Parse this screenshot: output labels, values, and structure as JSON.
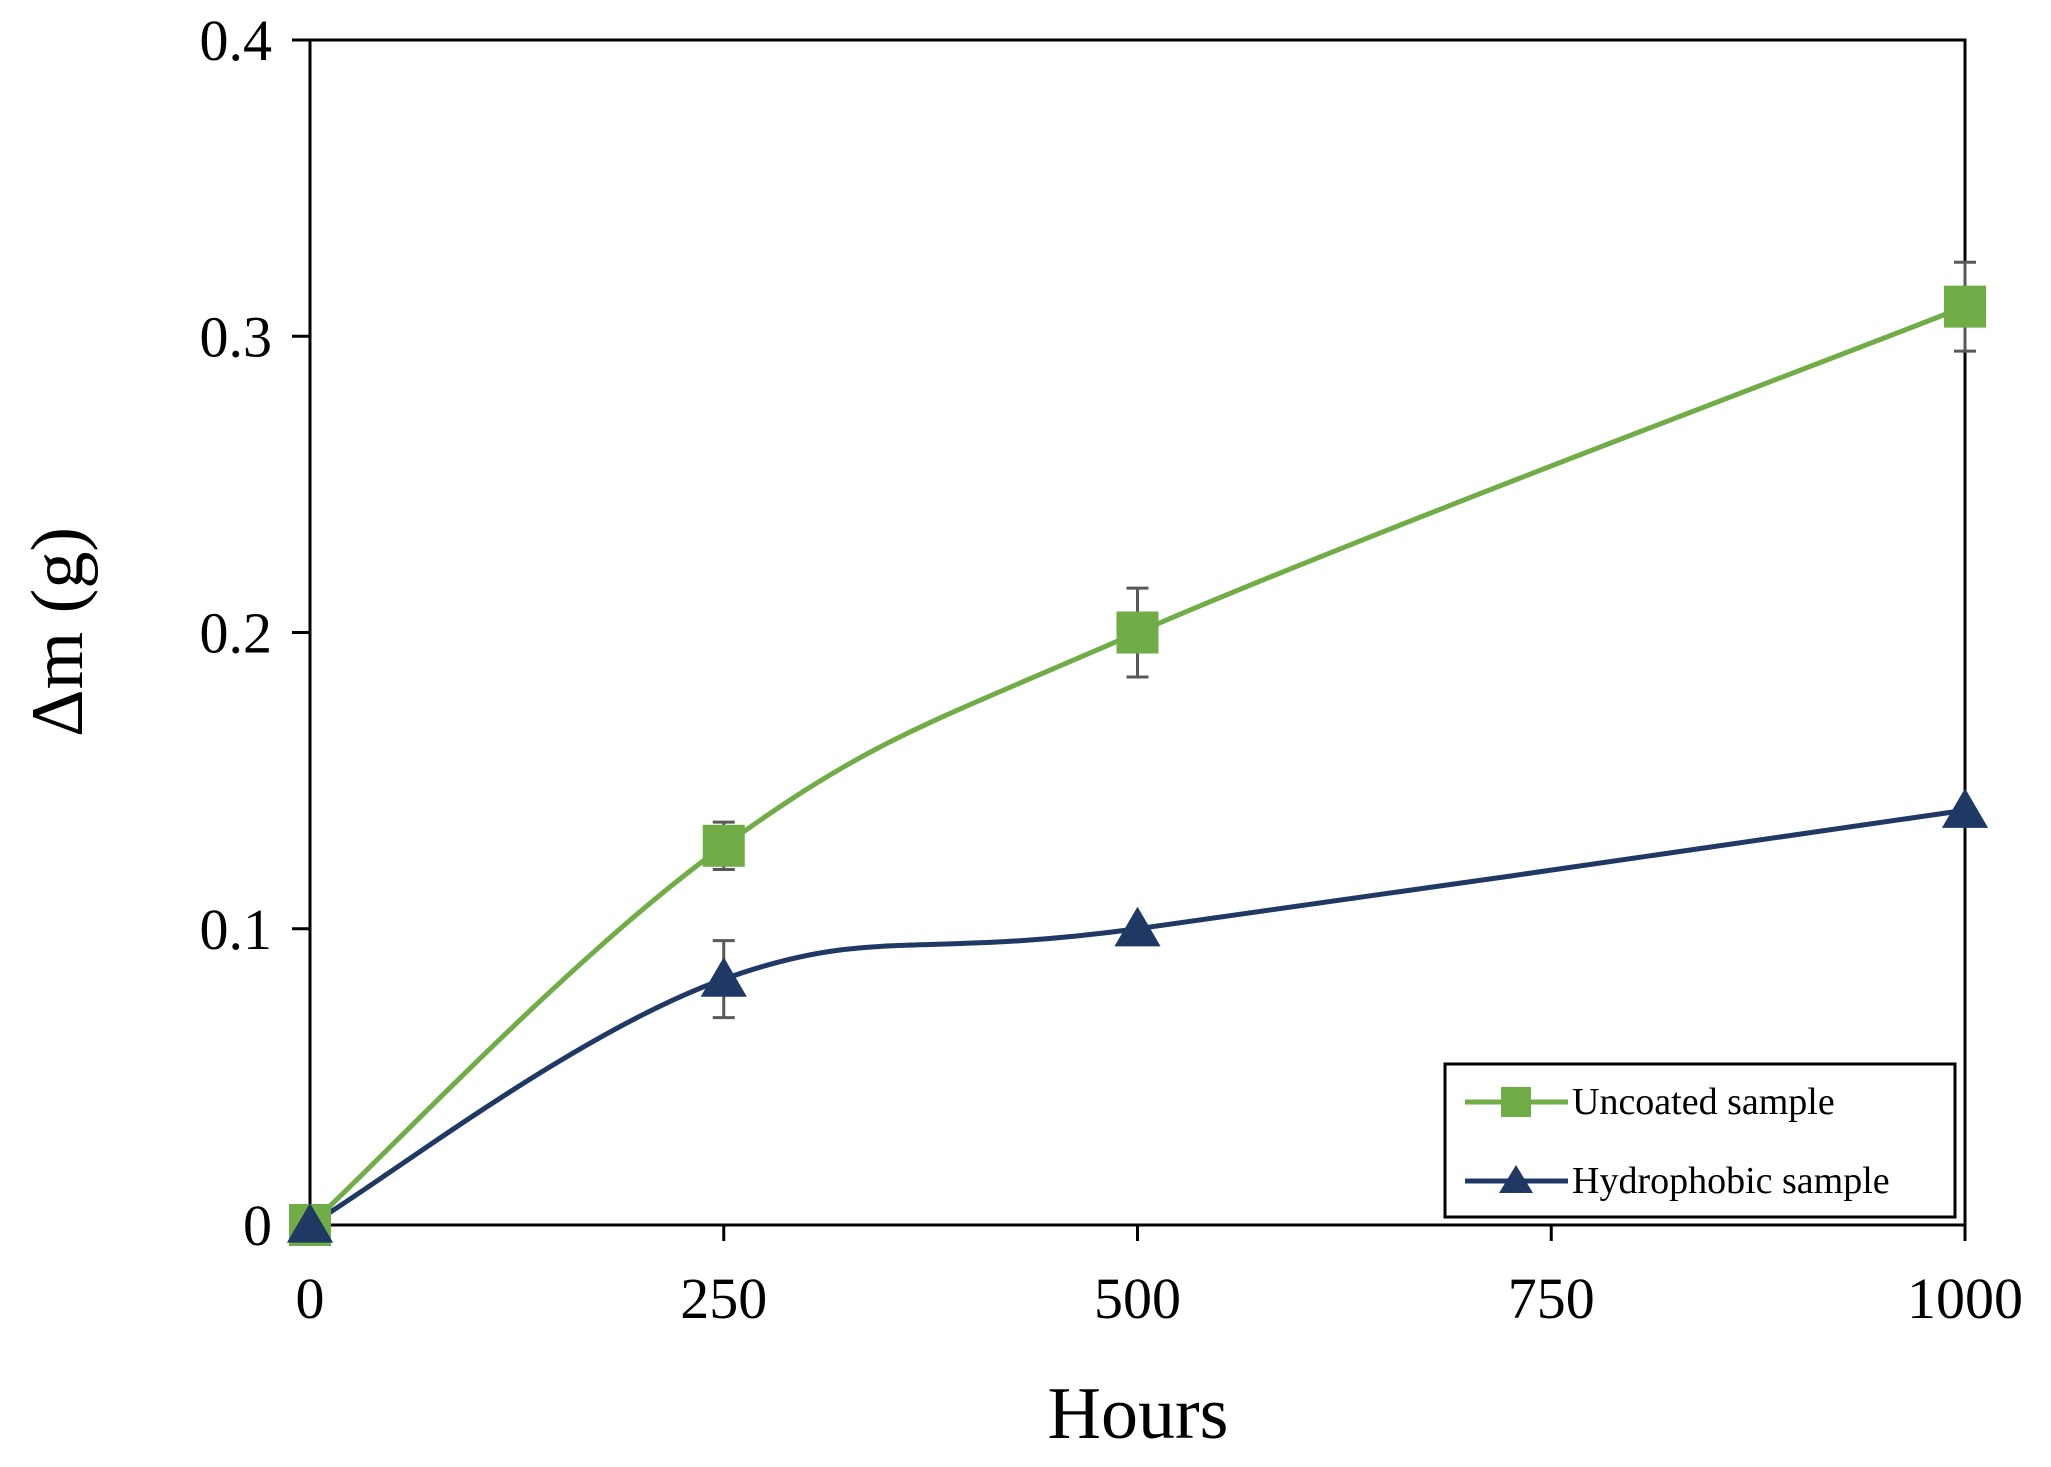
{
  "chart_data": {
    "type": "line",
    "title": "",
    "xlabel": "Hours",
    "ylabel": "Δm (g)",
    "x": [
      0,
      250,
      500,
      1000
    ],
    "xlim": [
      0,
      1000
    ],
    "ylim": [
      0,
      0.4
    ],
    "x_ticks": [
      "0",
      "250",
      "500",
      "750",
      "1000"
    ],
    "y_ticks": [
      "0",
      "0.1",
      "0.2",
      "0.3",
      "0.4"
    ],
    "grid": false,
    "smooth_lines": true,
    "legend_position": "bottom-right",
    "series": [
      {
        "name": "Uncoated sample",
        "marker": "square",
        "color": "#70ad47",
        "values": [
          0,
          0.128,
          0.2,
          0.31
        ],
        "error": [
          0,
          0.008,
          0.015,
          0.015
        ]
      },
      {
        "name": "Hydrophobic sample",
        "marker": "triangle",
        "color": "#1f3864",
        "values": [
          0,
          0.083,
          0.1,
          0.14
        ],
        "error": [
          0,
          0.013,
          0,
          0
        ]
      }
    ]
  }
}
